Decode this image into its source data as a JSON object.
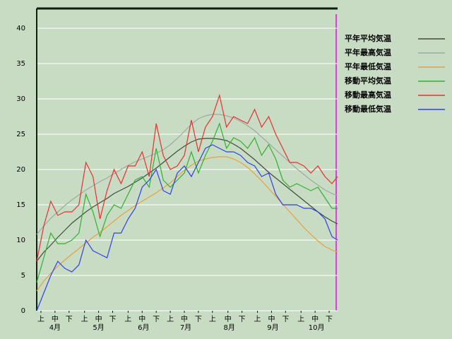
{
  "chart_data": {
    "type": "line",
    "x": [
      0,
      5,
      10,
      15,
      20,
      25,
      30,
      35,
      40,
      45,
      50,
      55,
      60,
      65,
      70,
      75,
      80,
      85,
      90,
      95,
      100,
      105,
      110,
      115,
      120,
      125,
      130,
      135,
      140,
      145,
      150,
      155,
      160,
      165,
      170,
      175,
      180,
      185,
      190,
      195,
      200,
      205,
      210,
      214
    ],
    "xlim": [
      0,
      214
    ],
    "xticks": [
      {
        "value": 3,
        "label": "上"
      },
      {
        "value": 13,
        "label": "中"
      },
      {
        "value": 23,
        "label": "下"
      },
      {
        "value": 34,
        "label": "上"
      },
      {
        "value": 44,
        "label": "中"
      },
      {
        "value": 54,
        "label": "下"
      },
      {
        "value": 65,
        "label": "上"
      },
      {
        "value": 75,
        "label": "中"
      },
      {
        "value": 85,
        "label": "下"
      },
      {
        "value": 95,
        "label": "上"
      },
      {
        "value": 105,
        "label": "中"
      },
      {
        "value": 115,
        "label": "下"
      },
      {
        "value": 125,
        "label": "上"
      },
      {
        "value": 136,
        "label": "中"
      },
      {
        "value": 146,
        "label": "下"
      },
      {
        "value": 157,
        "label": "上"
      },
      {
        "value": 167,
        "label": "中"
      },
      {
        "value": 177,
        "label": "下"
      },
      {
        "value": 188,
        "label": "上"
      },
      {
        "value": 198,
        "label": "中"
      },
      {
        "value": 208,
        "label": "下"
      }
    ],
    "x_groups": [
      {
        "value": 13,
        "label": "4月"
      },
      {
        "value": 44,
        "label": "5月"
      },
      {
        "value": 76,
        "label": "6月"
      },
      {
        "value": 106,
        "label": "7月"
      },
      {
        "value": 137,
        "label": "8月"
      },
      {
        "value": 168,
        "label": "9月"
      },
      {
        "value": 199,
        "label": "10月"
      }
    ],
    "ylim": [
      0,
      42.8
    ],
    "yticks": [
      0,
      5,
      10,
      15,
      20,
      25,
      30,
      35,
      40
    ],
    "grid": true,
    "legend": "top-right",
    "series": [
      {
        "name": "平年平均気温",
        "color": "#404a40",
        "values": [
          7.0,
          8.3,
          9.3,
          10.4,
          11.4,
          12.4,
          13.2,
          14.0,
          14.7,
          15.3,
          15.9,
          16.6,
          17.1,
          17.6,
          18.2,
          18.8,
          19.5,
          20.2,
          21.0,
          21.8,
          22.6,
          23.3,
          23.9,
          24.3,
          24.4,
          24.4,
          24.3,
          24.1,
          23.6,
          23.0,
          22.2,
          21.4,
          20.5,
          19.6,
          18.8,
          18.0,
          17.2,
          16.4,
          15.6,
          14.8,
          14.0,
          13.3,
          12.7,
          12.3
        ]
      },
      {
        "name": "平年最高気温",
        "color": "#a0a8a0",
        "values": [
          10.8,
          12.0,
          13.1,
          14.0,
          14.9,
          15.7,
          16.4,
          17.1,
          17.7,
          18.3,
          18.8,
          19.4,
          20.0,
          20.6,
          21.1,
          21.5,
          21.9,
          22.3,
          22.8,
          23.5,
          24.4,
          25.4,
          26.4,
          27.2,
          27.6,
          27.8,
          27.8,
          27.6,
          27.3,
          26.8,
          26.2,
          25.5,
          24.6,
          23.7,
          22.8,
          21.9,
          21.0,
          20.1,
          19.3,
          18.5,
          17.8,
          17.1,
          16.6,
          16.3
        ]
      },
      {
        "name": "平年最低気温",
        "color": "#e8a040",
        "values": [
          2.8,
          4.2,
          5.3,
          6.3,
          7.2,
          8.0,
          8.8,
          9.6,
          10.4,
          11.1,
          11.9,
          12.7,
          13.5,
          14.2,
          14.9,
          15.5,
          16.1,
          16.7,
          17.4,
          18.1,
          19.0,
          19.9,
          20.6,
          21.2,
          21.5,
          21.7,
          21.8,
          21.8,
          21.5,
          21.0,
          20.3,
          19.4,
          18.4,
          17.3,
          16.2,
          15.1,
          14.0,
          12.9,
          11.8,
          10.8,
          9.9,
          9.1,
          8.6,
          8.3
        ]
      },
      {
        "name": "移動平均気温",
        "color": "#30b030",
        "values": [
          4,
          7.5,
          11,
          9.5,
          9.5,
          10,
          11,
          16.5,
          14,
          10.5,
          13.5,
          15,
          14.5,
          16.5,
          18.5,
          19,
          17.5,
          23,
          18.5,
          17.5,
          18.5,
          19.5,
          22.5,
          19.5,
          22,
          24,
          26.5,
          23,
          24.5,
          24,
          23,
          24.5,
          22,
          23.5,
          21.5,
          18.5,
          17.5,
          18,
          17.5,
          17,
          17.5,
          16,
          14.5,
          14.5
        ]
      },
      {
        "name": "移動最高気温",
        "color": "#e83030",
        "values": [
          7,
          12,
          15.5,
          13.5,
          14,
          14,
          15,
          21,
          19,
          13,
          17,
          20,
          18,
          20.5,
          20.5,
          22.5,
          19,
          26.5,
          22,
          20,
          20.5,
          22,
          27,
          22.5,
          26,
          27.5,
          30.5,
          26,
          27.5,
          27,
          26.5,
          28.5,
          26,
          27.5,
          25,
          23,
          21,
          21,
          20.5,
          19.5,
          20.5,
          19,
          18,
          19
        ]
      },
      {
        "name": "移動最低気温",
        "color": "#3040e8",
        "values": [
          0,
          2.5,
          5,
          7,
          6,
          5.5,
          6.5,
          10,
          8.5,
          8,
          7.5,
          11,
          11,
          13,
          14.5,
          17.5,
          18.5,
          20,
          17,
          16.5,
          19.5,
          20.5,
          19,
          21,
          23,
          23.5,
          23,
          22.5,
          22.5,
          22,
          21,
          20.5,
          19,
          19.5,
          16.5,
          15,
          15,
          15,
          14.5,
          14.5,
          14,
          13,
          10.5,
          10
        ]
      }
    ]
  }
}
